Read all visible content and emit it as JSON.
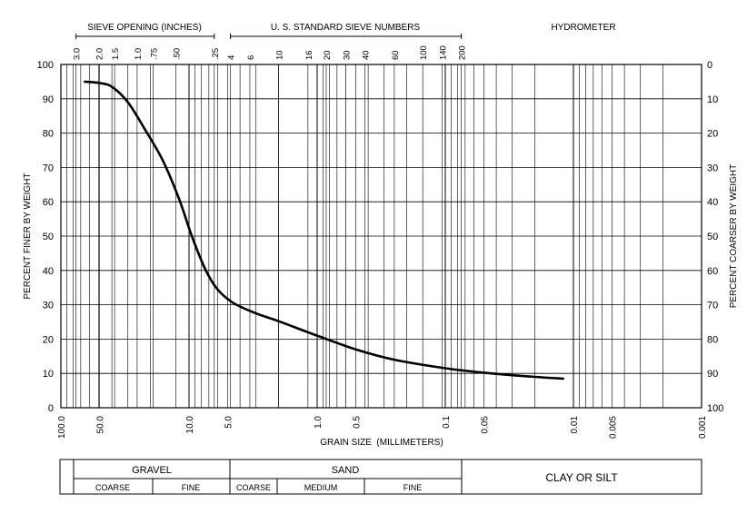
{
  "chart_data": {
    "type": "line",
    "x_scale": "log",
    "x_reversed": true,
    "xlim": [
      100.0,
      0.001
    ],
    "ylim": [
      0,
      100
    ],
    "xlabel": "GRAIN SIZE  (MILLIMETERS)",
    "ylabel_left": "PERCENT FINER BY WEIGHT",
    "ylabel_right": "PERCENT COARSER BY WEIGHT",
    "grid": true,
    "x_tick_labels": [
      {
        "value": 100.0,
        "label": "100.0"
      },
      {
        "value": 50.0,
        "label": "50.0"
      },
      {
        "value": 10.0,
        "label": "10.0"
      },
      {
        "value": 5.0,
        "label": "5.0"
      },
      {
        "value": 1.0,
        "label": "1.0"
      },
      {
        "value": 0.5,
        "label": "0.5"
      },
      {
        "value": 0.1,
        "label": "0.1"
      },
      {
        "value": 0.05,
        "label": "0.05"
      },
      {
        "value": 0.01,
        "label": "0.01"
      },
      {
        "value": 0.005,
        "label": "0.005"
      },
      {
        "value": 0.001,
        "label": "0.001"
      }
    ],
    "y_ticks_left": [
      "0",
      "10",
      "20",
      "30",
      "40",
      "50",
      "60",
      "70",
      "80",
      "90",
      "100"
    ],
    "y_ticks_right": [
      "100",
      "90",
      "80",
      "70",
      "60",
      "50",
      "40",
      "30",
      "20",
      "10",
      "0"
    ],
    "top_sections": {
      "sieve_opening": {
        "label": "SIEVE OPENING  (INCHES)",
        "ticks": [
          {
            "label": "3.0",
            "mm": 76.2
          },
          {
            "label": "2.0",
            "mm": 50.8
          },
          {
            "label": "1.5",
            "mm": 38.1
          },
          {
            "label": "1.0",
            "mm": 25.4
          },
          {
            "label": ".75",
            "mm": 19.05
          },
          {
            "label": ".50",
            "mm": 12.7
          },
          {
            "label": ".25",
            "mm": 6.35
          }
        ]
      },
      "sieve_numbers": {
        "label": "U. S. STANDARD SIEVE NUMBERS",
        "ticks": [
          {
            "label": "4",
            "mm": 4.75
          },
          {
            "label": "6",
            "mm": 3.35
          },
          {
            "label": "10",
            "mm": 2.0
          },
          {
            "label": "16",
            "mm": 1.18
          },
          {
            "label": "20",
            "mm": 0.85
          },
          {
            "label": "30",
            "mm": 0.6
          },
          {
            "label": "40",
            "mm": 0.425
          },
          {
            "label": "60",
            "mm": 0.25
          },
          {
            "label": "100",
            "mm": 0.15
          },
          {
            "label": "140",
            "mm": 0.106
          },
          {
            "label": "200",
            "mm": 0.075
          }
        ]
      },
      "hydrometer": {
        "label": "HYDROMETER"
      }
    },
    "series": [
      {
        "values": [
          {
            "x": 65.0,
            "y": 95.0
          },
          {
            "x": 50.0,
            "y": 94.6
          },
          {
            "x": 40.0,
            "y": 93.5
          },
          {
            "x": 30.0,
            "y": 89.0
          },
          {
            "x": 22.0,
            "y": 81.0
          },
          {
            "x": 16.0,
            "y": 72.0
          },
          {
            "x": 12.0,
            "y": 61.0
          },
          {
            "x": 9.5,
            "y": 50.0
          },
          {
            "x": 7.5,
            "y": 40.5
          },
          {
            "x": 6.0,
            "y": 34.5
          },
          {
            "x": 4.5,
            "y": 30.5
          },
          {
            "x": 3.0,
            "y": 27.5
          },
          {
            "x": 2.0,
            "y": 25.2
          },
          {
            "x": 1.0,
            "y": 21.0
          },
          {
            "x": 0.5,
            "y": 17.0
          },
          {
            "x": 0.25,
            "y": 14.0
          },
          {
            "x": 0.1,
            "y": 11.5
          },
          {
            "x": 0.05,
            "y": 10.2
          },
          {
            "x": 0.02,
            "y": 9.0
          },
          {
            "x": 0.012,
            "y": 8.5
          }
        ]
      }
    ]
  },
  "classification": {
    "gravel": {
      "label": "GRAVEL",
      "coarse": "COARSE",
      "fine": "FINE"
    },
    "sand": {
      "label": "SAND",
      "coarse": "COARSE",
      "medium": "MEDIUM",
      "fine": "FINE"
    },
    "clay_silt": "CLAY OR SILT"
  }
}
